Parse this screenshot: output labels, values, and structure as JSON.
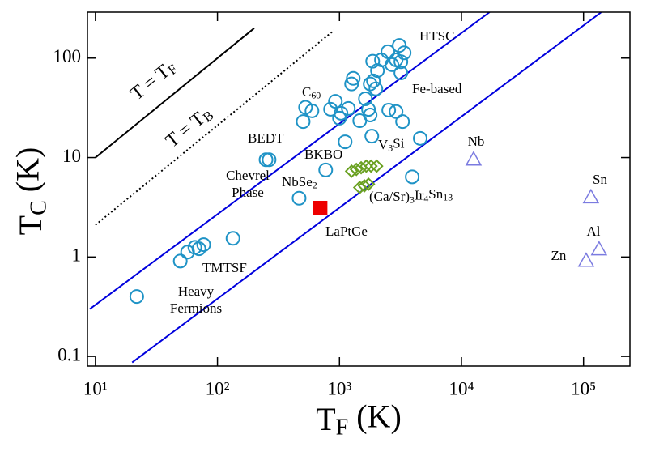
{
  "chart_data": {
    "type": "scatter",
    "xscale": "log",
    "yscale": "log",
    "xlim": [
      8.6,
      240000
    ],
    "ylim": [
      0.08,
      290
    ],
    "xticks": [
      {
        "value": 10,
        "label": "10¹"
      },
      {
        "value": 100,
        "label": "10²"
      },
      {
        "value": 1000,
        "label": "10³"
      },
      {
        "value": 10000,
        "label": "10⁴"
      },
      {
        "value": 100000,
        "label": "10⁵"
      }
    ],
    "yticks": [
      0.1,
      1,
      10,
      100
    ],
    "xlabel": [
      {
        "text": "T"
      },
      {
        "text": "F",
        "sub": true
      },
      {
        "text": " (K)"
      }
    ],
    "ylabel": [
      {
        "text": "T"
      },
      {
        "text": "C",
        "sub": true
      },
      {
        "text": " (K)"
      }
    ],
    "series": [
      {
        "marker": "circle",
        "color": "#1f93c6",
        "x": [
          21.8,
          49.6,
          56.9,
          65.3,
          70.5,
          77.1,
          134,
          250,
          265,
          504,
          527,
          595,
          771,
          845,
          926,
          1000,
          1030,
          1182,
          1113,
          467,
          1257,
          1297,
          1466,
          1631,
          1730,
          1785,
          1785,
          1897,
          1841,
          1871,
          1987,
          2048,
          2208,
          2495,
          2690,
          2534,
          2910,
          2910,
          3187,
          3187,
          3090,
          3390,
          3288,
          3945,
          4590
        ],
        "values": [
          0.4,
          0.91,
          1.12,
          1.25,
          1.21,
          1.33,
          1.54,
          9.5,
          9.5,
          23,
          32,
          29.5,
          7.5,
          30.6,
          36.8,
          24.9,
          27.9,
          31.2,
          14.4,
          3.9,
          55,
          62.6,
          23.5,
          39,
          30.5,
          26.8,
          55,
          59,
          16.4,
          93,
          49,
          75,
          96,
          116,
          86,
          30,
          29,
          96,
          71,
          92,
          134,
          113,
          23,
          6.4,
          15.6
        ]
      },
      {
        "marker": "diamond",
        "color": "#6aa121",
        "x": [
          1257,
          1377,
          1505,
          1657,
          1813,
          2018,
          1466,
          1600,
          1730
        ],
        "values": [
          7.3,
          7.6,
          7.9,
          8.2,
          8.2,
          8.2,
          5.0,
          5.2,
          5.4
        ]
      },
      {
        "marker": "square",
        "color": "#ee0000",
        "x": [
          694
        ],
        "values": [
          3.1
        ]
      },
      {
        "marker": "triangle",
        "color": "#7b7be0",
        "x": [
          12560,
          115000,
          134000,
          105000
        ],
        "values": [
          9.6,
          4.0,
          1.2,
          0.92
        ]
      }
    ],
    "lines": [
      {
        "color": "#000000",
        "dash": "solid",
        "x": [
          10,
          200
        ],
        "y": [
          10,
          200
        ]
      },
      {
        "color": "#000000",
        "dash": "dotted",
        "x": [
          10,
          900
        ],
        "y": [
          2.1,
          190
        ]
      },
      {
        "color": "#0000dd",
        "dash": "solid",
        "x": [
          9,
          17000
        ],
        "y": [
          0.3,
          290
        ]
      },
      {
        "color": "#0000dd",
        "dash": "solid",
        "x": [
          20,
          140000
        ],
        "y": [
          0.087,
          290
        ]
      }
    ],
    "annotations": [
      {
        "lines": [
          [
            {
              "text": "T = T"
            },
            {
              "text": "F",
              "sub": true
            }
          ]
        ]
      },
      {
        "lines": [
          [
            {
              "text": "T = T"
            },
            {
              "text": "B",
              "sub": true
            }
          ]
        ]
      },
      {
        "lines": [
          [
            {
              "text": "HTSC"
            }
          ]
        ]
      },
      {
        "lines": [
          [
            {
              "text": "Fe-based"
            }
          ]
        ]
      },
      {
        "lines": [
          [
            {
              "text": "C"
            },
            {
              "text": "60",
              "sub": true
            }
          ]
        ]
      },
      {
        "lines": [
          [
            {
              "text": "BEDT"
            }
          ]
        ]
      },
      {
        "lines": [
          [
            {
              "text": "BKBO"
            }
          ]
        ]
      },
      {
        "lines": [
          [
            {
              "text": "V"
            },
            {
              "text": "3",
              "sub": true
            },
            {
              "text": "Si"
            }
          ]
        ]
      },
      {
        "lines": [
          [
            {
              "text": "Chevrel"
            }
          ],
          [
            {
              "text": "Phase"
            }
          ]
        ]
      },
      {
        "lines": [
          [
            {
              "text": "NbSe"
            },
            {
              "text": "2",
              "sub": true
            }
          ]
        ]
      },
      {
        "lines": [
          [
            {
              "text": "(Ca/Sr)"
            },
            {
              "text": "3",
              "sub": true
            },
            {
              "text": "Ir"
            },
            {
              "text": "4",
              "sub": true
            },
            {
              "text": "Sn"
            },
            {
              "text": "13",
              "sub": true
            }
          ]
        ]
      },
      {
        "lines": [
          [
            {
              "text": "LaPtGe"
            }
          ]
        ]
      },
      {
        "lines": [
          [
            {
              "text": "TMTSF"
            }
          ]
        ]
      },
      {
        "lines": [
          [
            {
              "text": "Heavy"
            }
          ],
          [
            {
              "text": "Fermions"
            }
          ]
        ]
      },
      {
        "lines": [
          [
            {
              "text": "Nb"
            }
          ]
        ]
      },
      {
        "lines": [
          [
            {
              "text": "Sn"
            }
          ]
        ]
      },
      {
        "lines": [
          [
            {
              "text": "Al"
            }
          ]
        ]
      },
      {
        "lines": [
          [
            {
              "text": "Zn"
            }
          ]
        ]
      }
    ]
  }
}
